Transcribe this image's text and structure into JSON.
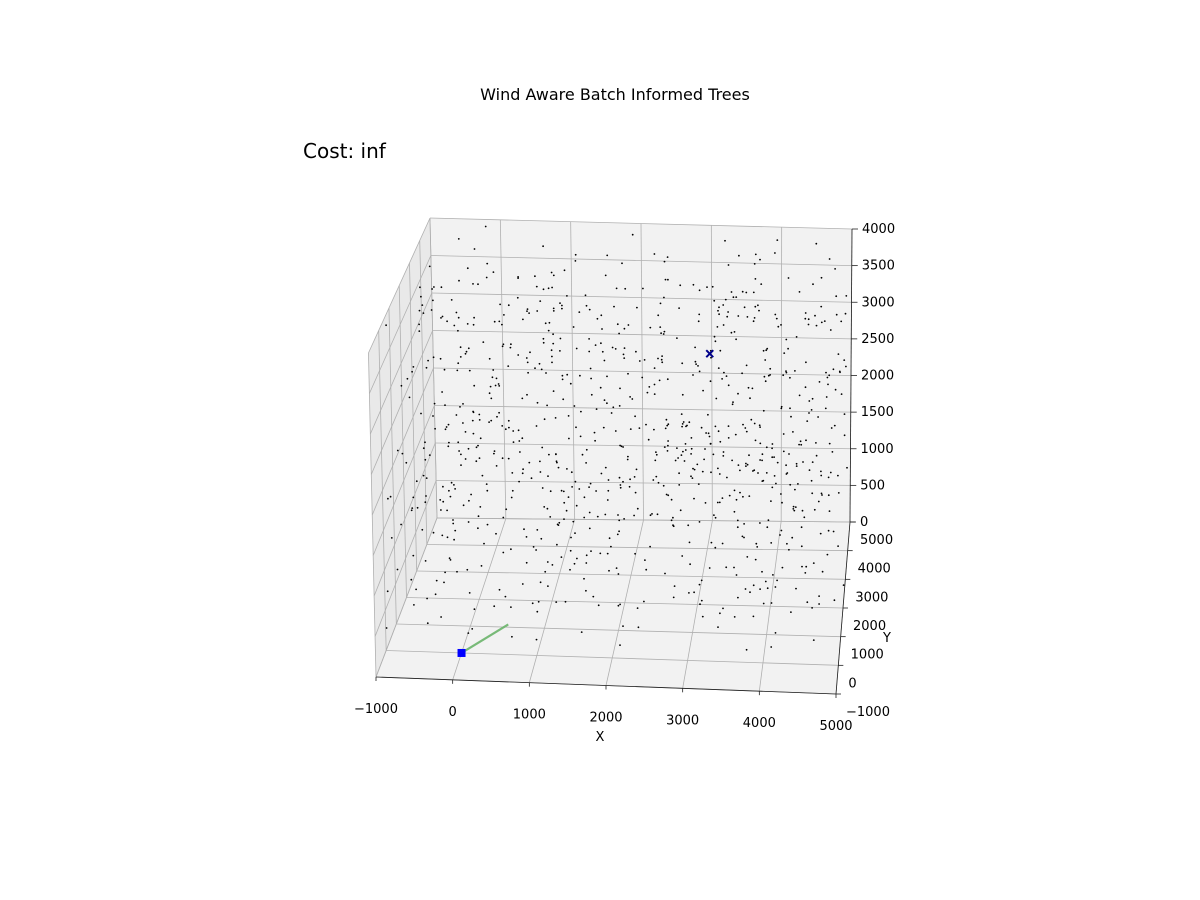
{
  "chart_data": {
    "type": "scatter3d",
    "title": "Wind Aware Batch Informed Trees",
    "annotation": "Cost: inf",
    "xlabel": "X",
    "ylabel": "Y",
    "zlabel": "",
    "xlim": [
      -1000,
      5000
    ],
    "ylim": [
      -1000,
      5000
    ],
    "zlim": [
      0,
      4000
    ],
    "x_ticks": [
      -1000,
      0,
      1000,
      2000,
      3000,
      4000,
      5000
    ],
    "y_ticks": [
      -1000,
      0,
      1000,
      2000,
      3000,
      4000,
      5000
    ],
    "z_ticks": [
      0,
      500,
      1000,
      1500,
      2000,
      2500,
      3000,
      3500,
      4000
    ],
    "grid": true,
    "samples": {
      "count": 900,
      "color": "#000000",
      "marker": "dot"
    },
    "start": {
      "x": 0,
      "y": 0,
      "z": 0,
      "marker": "square",
      "color": "#0000ff"
    },
    "goal": {
      "x": 3000,
      "y": 4600,
      "z": 2400,
      "marker": "x",
      "color": "#00008b"
    },
    "edges": [
      {
        "from": [
          0,
          0,
          0
        ],
        "to": [
          500,
          1100,
          0
        ],
        "color": "#6ab46a"
      }
    ]
  }
}
